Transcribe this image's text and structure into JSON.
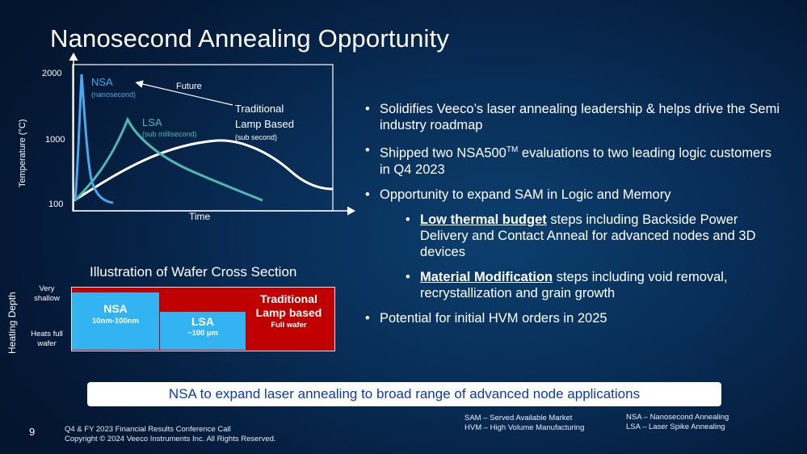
{
  "slide": {
    "title": "Nanosecond Annealing Opportunity",
    "page_number": "9",
    "footer_line1": "Q4 & FY 2023 Financial Results Conference Call",
    "footer_line2": "Copyright © 2024 Veeco Instruments Inc. All Rights Reserved.",
    "abbrev_left_1": "SAM – Served Available Market",
    "abbrev_left_2": "HVM – High Volume Manufacturing",
    "abbrev_right_1": "NSA – Nanosecond Annealing",
    "abbrev_right_2": "LSA – Laser Spike Annealing",
    "banner": "NSA to expand laser annealing to broad range of advanced node applications"
  },
  "chart": {
    "y_label": "Temperature (°C)",
    "x_label": "Time",
    "y_ticks": [
      "2000",
      "1000",
      "100"
    ],
    "future_label": "Future",
    "nsa_label": "NSA",
    "nsa_sub": "(nanosecond)",
    "lsa_label": "LSA",
    "lsa_sub": "(sub millisecond)",
    "trad_label_1": "Traditional",
    "trad_label_2": "Lamp Based",
    "trad_sub": "(sub second)"
  },
  "chart_data": {
    "type": "line",
    "xlabel": "Time",
    "ylabel": "Temperature (°C)",
    "y_ticks": [
      2000,
      1000,
      100
    ],
    "series": [
      {
        "name": "NSA",
        "peak": 2000,
        "color": "#4aa8f0"
      },
      {
        "name": "LSA",
        "peak": 1300,
        "color": "#4fb8b0"
      },
      {
        "name": "Traditional Lamp Based",
        "peak": 1000,
        "color": "#ffffff"
      }
    ]
  },
  "bullets": [
    {
      "text": "Solidifies Veeco’s laser annealing leadership & helps drive the Semi industry roadmap"
    },
    {
      "pre": "Shipped two NSA500",
      "sup": "TM",
      "post": " evaluations to two leading logic customers in Q4 2023"
    },
    {
      "text": "Opportunity to expand SAM in Logic and Memory"
    },
    {
      "highlight": "Low thermal budget",
      "rest": " steps including Backside Power Delivery and Contact Anneal for advanced nodes and 3D devices"
    },
    {
      "highlight": "Material Modification",
      "rest": " steps including void removal, recrystallization and grain growth"
    },
    {
      "text": "Potential for initial HVM orders in 2025"
    }
  ],
  "cross_section": {
    "title": "Illustration of Wafer Cross Section",
    "axis_label": "Heating Depth",
    "top_label_1": "Very",
    "top_label_2": "shallow",
    "bottom_label_1": "Heats full",
    "bottom_label_2": "wafer",
    "nsa_title": "NSA",
    "nsa_sub": "10nm-100nm",
    "lsa_title": "LSA",
    "lsa_sub": "~100 µm",
    "trad_title_1": "Traditional",
    "trad_title_2": "Lamp based",
    "trad_sub": "Full wafer",
    "colors": {
      "red": "#c00000",
      "blue": "#33b3f2"
    }
  }
}
